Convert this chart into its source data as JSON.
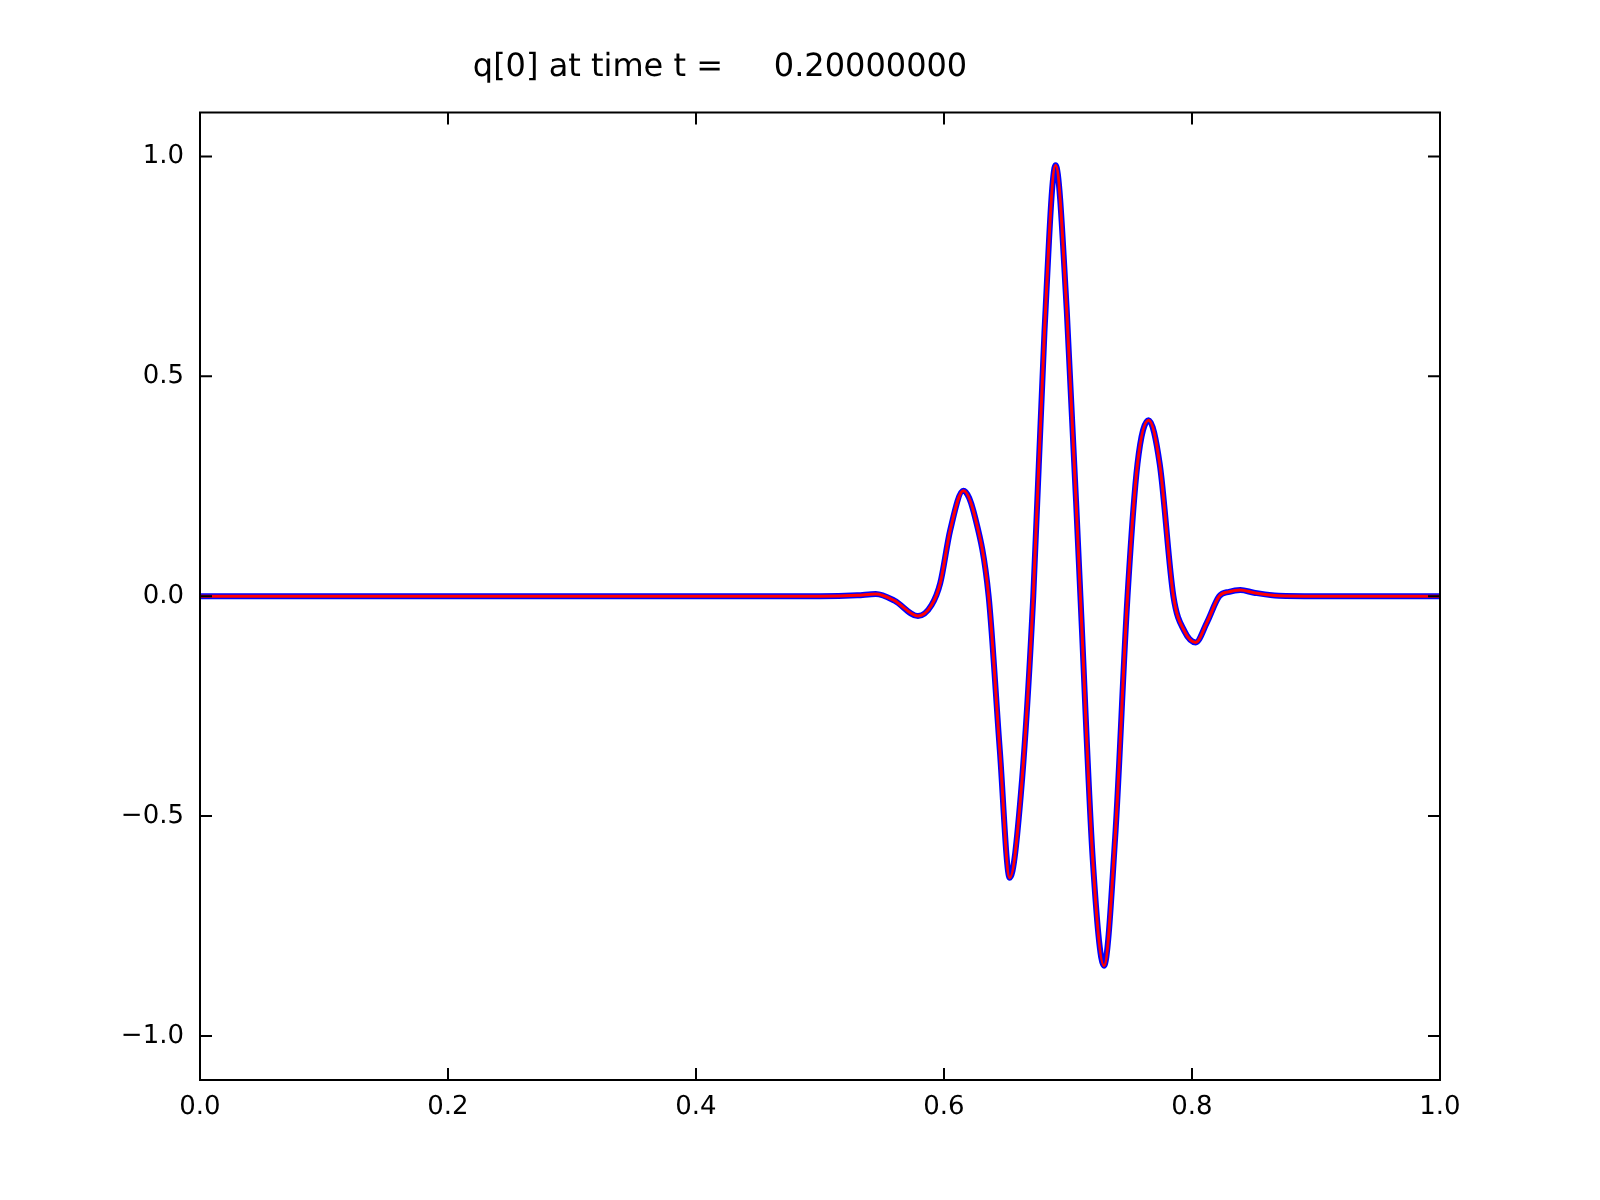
{
  "chart_data": {
    "type": "line",
    "title": "q[0] at time t =     0.20000000",
    "x": [
      0,
      0.5,
      0.53,
      0.545,
      0.56,
      0.579,
      0.59,
      0.597,
      0.605,
      0.6156,
      0.625,
      0.636,
      0.645,
      0.653,
      0.662,
      0.672,
      0.681,
      0.69,
      0.699,
      0.71,
      0.72,
      0.729,
      0.738,
      0.748,
      0.756,
      0.765,
      0.774,
      0.785,
      0.794,
      0.803,
      0.812,
      0.822,
      0.83,
      0.839,
      0.85,
      0.87,
      0.9,
      1.0
    ],
    "series": [
      {
        "color": "#0000ff",
        "values": [
          0,
          0,
          0.002,
          0.005,
          -0.01,
          -0.045,
          -0.02,
          0.03,
          0.15,
          0.24,
          0.18,
          0,
          -0.35,
          -0.64,
          -0.45,
          0,
          0.6,
          0.98,
          0.65,
          0,
          -0.6,
          -0.84,
          -0.55,
          0,
          0.3,
          0.4,
          0.3,
          0,
          -0.08,
          -0.105,
          -0.06,
          0,
          0.01,
          0.014,
          0.008,
          0.001,
          0,
          0
        ]
      },
      {
        "color": "#ff0000",
        "values": [
          0,
          0,
          0.002,
          0.005,
          -0.01,
          -0.045,
          -0.02,
          0.03,
          0.15,
          0.24,
          0.18,
          0,
          -0.35,
          -0.64,
          -0.45,
          0,
          0.6,
          0.98,
          0.65,
          0,
          -0.6,
          -0.84,
          -0.55,
          0,
          0.3,
          0.4,
          0.3,
          0,
          -0.08,
          -0.105,
          -0.06,
          0,
          0.01,
          0.014,
          0.008,
          0.001,
          0,
          0
        ]
      }
    ],
    "xlim": [
      0,
      1
    ],
    "ylim": [
      -1.1,
      1.1
    ],
    "xticks": [
      {
        "value": 0,
        "label": "0.0"
      },
      {
        "value": 0.2,
        "label": "0.2"
      },
      {
        "value": 0.4,
        "label": "0.4"
      },
      {
        "value": 0.6,
        "label": "0.6"
      },
      {
        "value": 0.8,
        "label": "0.8"
      },
      {
        "value": 1,
        "label": "1.0"
      }
    ],
    "yticks": [
      {
        "value": -1,
        "label": "−1.0"
      },
      {
        "value": -0.5,
        "label": "−0.5"
      },
      {
        "value": 0,
        "label": "0.0"
      },
      {
        "value": 0.5,
        "label": "0.5"
      },
      {
        "value": 1,
        "label": "1.0"
      }
    ],
    "grid": false,
    "legend": false,
    "marker": "none",
    "line_style": "solid"
  }
}
